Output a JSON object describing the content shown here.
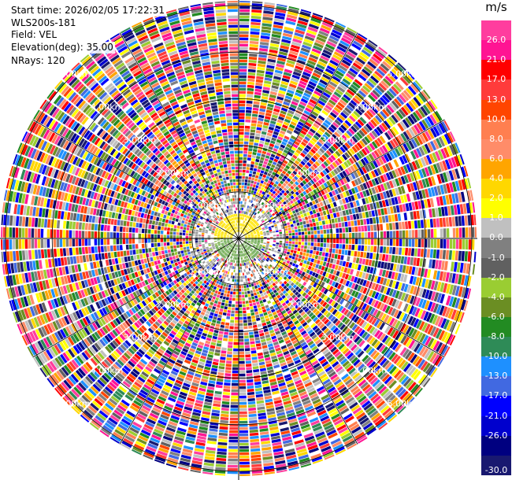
{
  "header": {
    "start_time": "Start time: 2026/02/05 17:22:31",
    "station": "WLS200s-181",
    "field": "Field: VEL",
    "elevation": "Elevation(deg): 35.00",
    "nrays": "NRays: 120"
  },
  "colorbar": {
    "unit": "m/s",
    "ticks": [
      "26.0",
      "21.0",
      "17.0",
      "13.0",
      "10.0",
      "8.0",
      "6.0",
      "4.0",
      "2.0",
      "1.0",
      "0.0",
      "-1.0",
      "-2.0",
      "-4.0",
      "-6.0",
      "-8.0",
      "-10.0",
      "-13.0",
      "-17.0",
      "-21.0",
      "-26.0",
      "-30.0"
    ],
    "colors": [
      "#ff3d9e",
      "#ff1493",
      "#ff0000",
      "#ff3b3b",
      "#ff4500",
      "#ff7f50",
      "#ff8c69",
      "#ffa500",
      "#ffd700",
      "#ffff00",
      "#c0c0c0",
      "#808080",
      "#606060",
      "#9acd32",
      "#6b8e23",
      "#228b22",
      "#2e8b57",
      "#1e90ff",
      "#4169e1",
      "#0000ff",
      "#0000cd",
      "#000080",
      "#191970"
    ]
  },
  "range_rings": {
    "labels_km": [
      "1.00km",
      "2.00km",
      "3.00km",
      "4.00km",
      "5.00km"
    ]
  },
  "ppi": {
    "nrays": 120,
    "max_range_km": 5.0,
    "near_field_radius_km": 0.5,
    "near_positive_color": "#ffe800",
    "near_negative_color": "#6aa84f"
  }
}
